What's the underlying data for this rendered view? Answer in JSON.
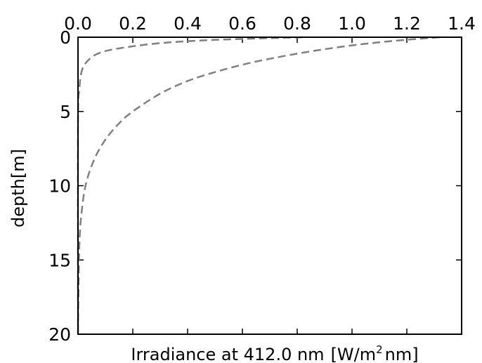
{
  "chart_data": {
    "type": "line",
    "title": "",
    "xlabel": "Irradiance at 412.0 nm",
    "xlabel_units": {
      "open": "[W/m",
      "superscript": "2",
      "close": "nm]"
    },
    "ylabel": "depth[m]",
    "xlim": [
      0.0,
      1.4
    ],
    "ylim": [
      20,
      0
    ],
    "x_axis_position": "top",
    "y_inverted": true,
    "grid": false,
    "legend": "none",
    "x_ticks": [
      "0.0",
      "0.2",
      "0.4",
      "0.6",
      "0.8",
      "1.0",
      "1.2",
      "1.4"
    ],
    "y_ticks": [
      "0",
      "5",
      "10",
      "15",
      "20"
    ],
    "series": [
      {
        "style": "dashed",
        "color": "#808080",
        "points": [
          {
            "x": 1.32,
            "y": 0.0
          },
          {
            "x": 1.15,
            "y": 0.25
          },
          {
            "x": 1.0,
            "y": 0.55
          },
          {
            "x": 0.85,
            "y": 0.95
          },
          {
            "x": 0.7,
            "y": 1.45
          },
          {
            "x": 0.6,
            "y": 1.85
          },
          {
            "x": 0.5,
            "y": 2.35
          },
          {
            "x": 0.4,
            "y": 2.95
          },
          {
            "x": 0.3,
            "y": 3.8
          },
          {
            "x": 0.2,
            "y": 5.0
          },
          {
            "x": 0.15,
            "y": 5.8
          },
          {
            "x": 0.1,
            "y": 6.9
          },
          {
            "x": 0.06,
            "y": 8.2
          },
          {
            "x": 0.03,
            "y": 9.8
          },
          {
            "x": 0.015,
            "y": 11.5
          },
          {
            "x": 0.005,
            "y": 14.0
          },
          {
            "x": 0.0,
            "y": 20.0
          }
        ]
      },
      {
        "style": "dashed",
        "color": "#808080",
        "points": [
          {
            "x": 0.82,
            "y": 0.0
          },
          {
            "x": 0.5,
            "y": 0.18
          },
          {
            "x": 0.3,
            "y": 0.4
          },
          {
            "x": 0.15,
            "y": 0.75
          },
          {
            "x": 0.08,
            "y": 1.05
          },
          {
            "x": 0.04,
            "y": 1.5
          },
          {
            "x": 0.015,
            "y": 2.2
          },
          {
            "x": 0.005,
            "y": 3.5
          },
          {
            "x": 0.0,
            "y": 6.0
          },
          {
            "x": 0.0,
            "y": 20.0
          }
        ]
      }
    ]
  }
}
